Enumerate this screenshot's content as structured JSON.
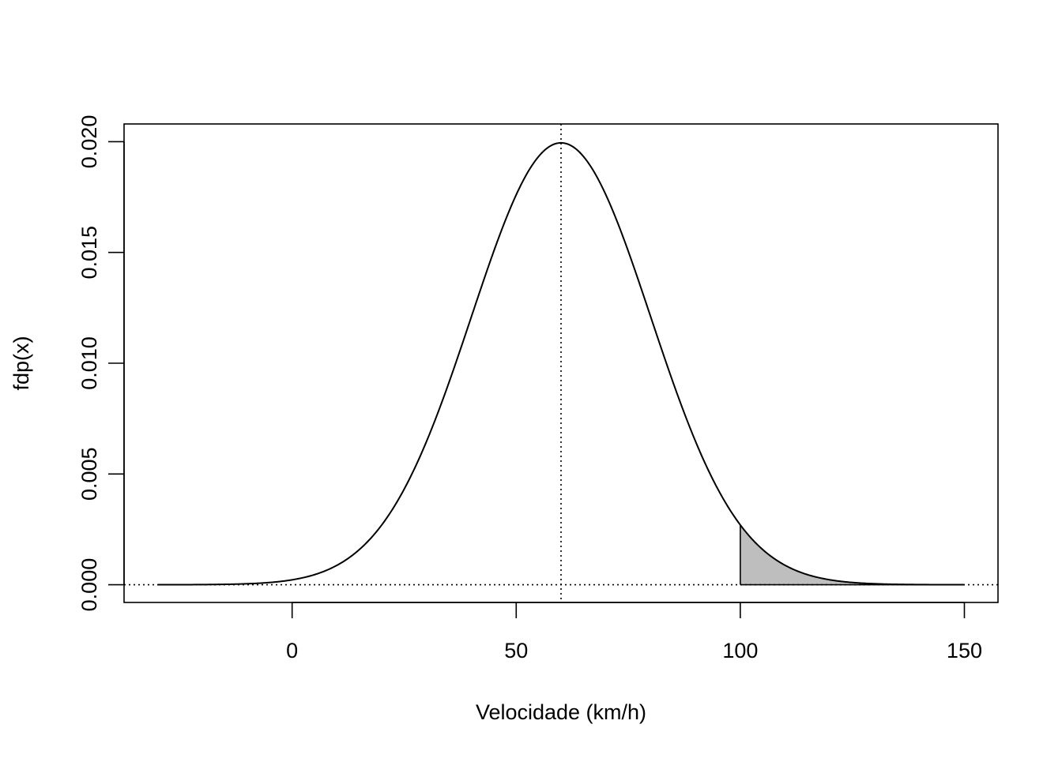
{
  "chart_data": {
    "type": "area",
    "title": "",
    "xlabel": "Velocidade (km/h)",
    "ylabel": "fdp(x)",
    "xlim": [
      -37.5,
      157.5
    ],
    "ylim": [
      -0.0008,
      0.0208
    ],
    "x_ticks": [
      0,
      50,
      100,
      150
    ],
    "x_tick_labels": [
      "0",
      "50",
      "100",
      "150"
    ],
    "y_ticks": [
      0.0,
      0.005,
      0.01,
      0.015,
      0.02
    ],
    "y_tick_labels": [
      "0.000",
      "0.005",
      "0.010",
      "0.015",
      "0.020"
    ],
    "grid": false,
    "legend": "none",
    "series": [
      {
        "kind": "normal density curve",
        "mean": 60,
        "sd": 20,
        "x_range": [
          -30,
          150
        ],
        "line_color": "#000000"
      }
    ],
    "shaded_region": {
      "from": 100,
      "to": 150,
      "fill": "#bebebe",
      "border": "#000000"
    },
    "reference_lines": [
      {
        "orientation": "vertical",
        "value": 60,
        "style": "dotted"
      },
      {
        "orientation": "horizontal",
        "value": 0,
        "style": "dotted"
      }
    ]
  }
}
